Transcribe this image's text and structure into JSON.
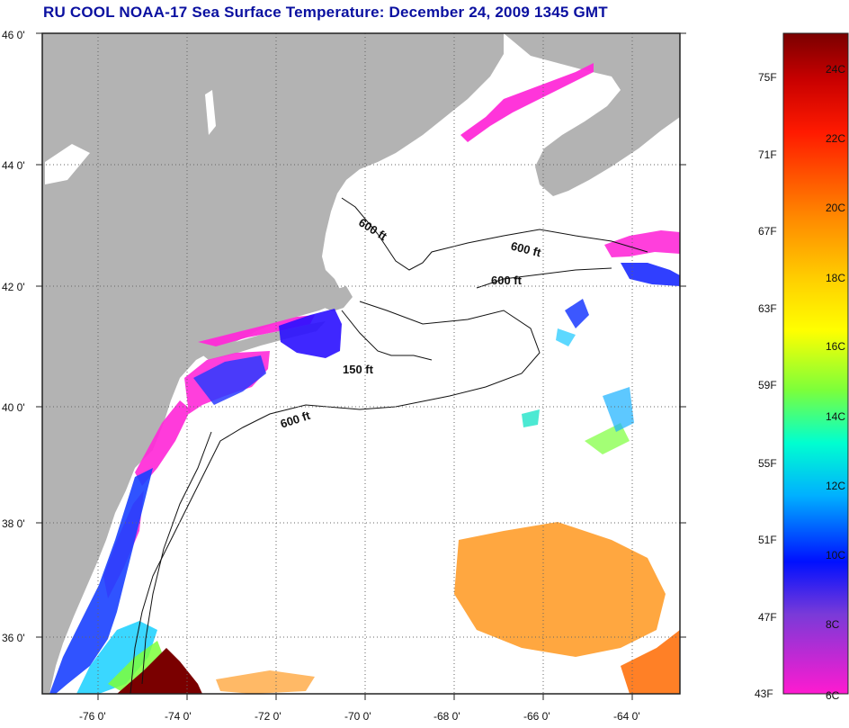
{
  "title": "RU COOL  NOAA-17  Sea Surface Temperature:  December 24, 2009 1345 GMT",
  "colors": {
    "land": "#b3b3b3",
    "ocean": "#ffffff",
    "grid": "#555555",
    "title": "#0a10a0"
  },
  "map": {
    "lon_range": [
      -77.0,
      -62.8
    ],
    "lat_range": [
      35.0,
      46.0
    ],
    "lat_labels": [
      "46 0'",
      "44 0'",
      "42 0'",
      "40 0'",
      "38 0'",
      "36 0'"
    ],
    "lon_labels": [
      "-76 0'",
      "-74 0'",
      "-72 0'",
      "-70 0'",
      "-68 0'",
      "-66 0'",
      "-64 0'"
    ],
    "contour_labels": [
      "600 ft",
      "600 ft",
      "600 ft",
      "150 ft",
      "600 ft"
    ]
  },
  "colorbar": {
    "fahrenheit_labels": [
      "75F",
      "71F",
      "67F",
      "63F",
      "59F",
      "55F",
      "51F",
      "47F",
      "43F"
    ],
    "celsius_labels": [
      "24C",
      "22C",
      "20C",
      "18C",
      "16C",
      "14C",
      "12C",
      "10C",
      "8C",
      "6C"
    ]
  }
}
